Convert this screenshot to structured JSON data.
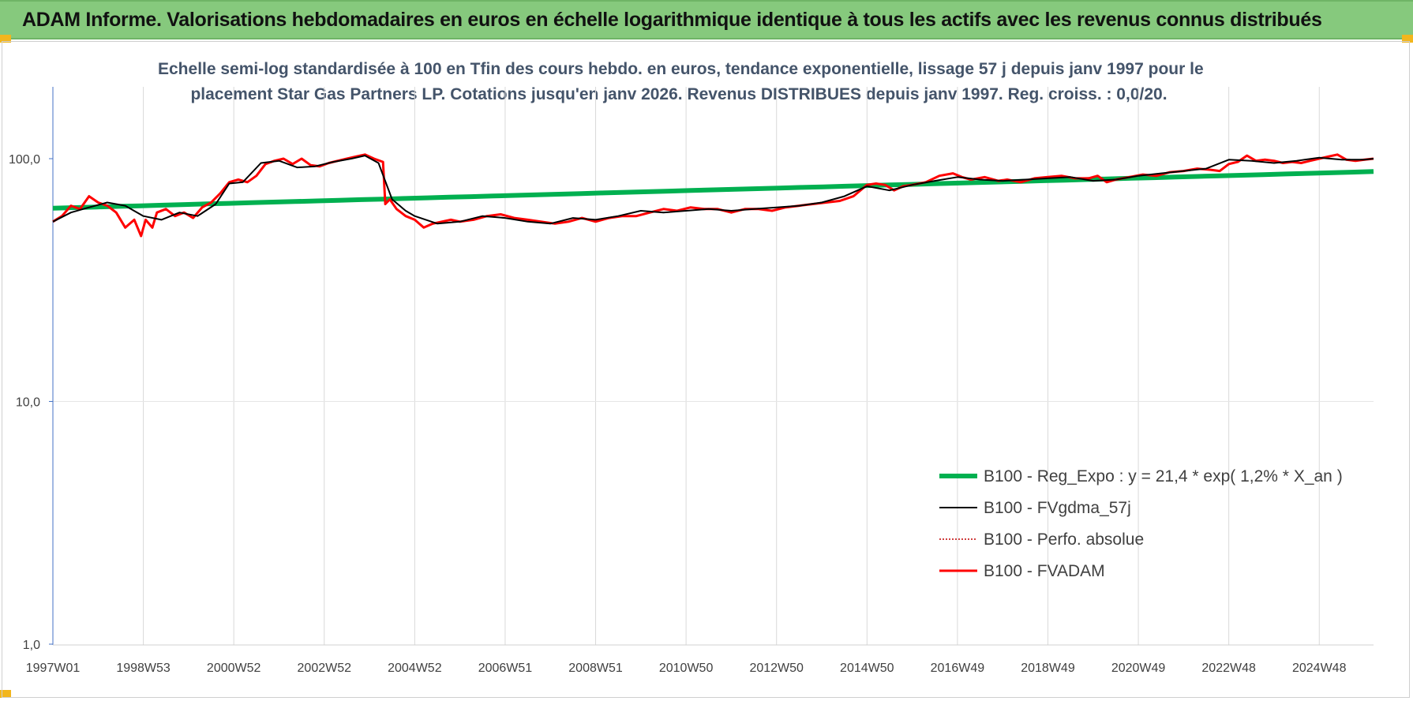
{
  "banner": {
    "title": "ADAM Informe. Valorisations hebdomadaires en euros en échelle logarithmique identique à tous les actifs avec les revenus connus distribués"
  },
  "colors": {
    "banner_bg": "#86c97d",
    "corner_accent": "#f2b61d",
    "regression": "#00b050",
    "fvgdma": "#000000",
    "perf": "#c00000",
    "fvadam": "#ff0000"
  },
  "chart_data": {
    "type": "line",
    "title_lines": [
      "Echelle semi-log standardisée à 100 en Tfin des cours hebdo. en euros, tendance exponentielle, lissage 57 j depuis janv 1997 pour le",
      "placement Star Gas Partners LP. Cotations jusqu'en janv 2026. Revenus DISTRIBUES depuis janv 1997. Reg. croiss. : 0,0/20."
    ],
    "y_scale": "log",
    "ylim": [
      1,
      200
    ],
    "y_ticks": [
      {
        "value": 1,
        "label": "1,0"
      },
      {
        "value": 10,
        "label": "10,0"
      },
      {
        "value": 100,
        "label": "100,0"
      }
    ],
    "xlim": [
      1997.0,
      2026.2
    ],
    "x_ticks": [
      {
        "t": 1997.0,
        "label": "1997W01"
      },
      {
        "t": 1999.0,
        "label": "1998W53"
      },
      {
        "t": 2001.0,
        "label": "2000W52"
      },
      {
        "t": 2003.0,
        "label": "2002W52"
      },
      {
        "t": 2005.0,
        "label": "2004W52"
      },
      {
        "t": 2007.0,
        "label": "2006W51"
      },
      {
        "t": 2009.0,
        "label": "2008W51"
      },
      {
        "t": 2011.0,
        "label": "2010W50"
      },
      {
        "t": 2013.0,
        "label": "2012W50"
      },
      {
        "t": 2015.0,
        "label": "2014W50"
      },
      {
        "t": 2017.0,
        "label": "2016W49"
      },
      {
        "t": 2019.0,
        "label": "2018W49"
      },
      {
        "t": 2021.0,
        "label": "2020W49"
      },
      {
        "t": 2023.0,
        "label": "2022W48"
      },
      {
        "t": 2025.0,
        "label": "2024W48"
      }
    ],
    "grid": "vertical",
    "legend_position": "bottom-right",
    "series": [
      {
        "name": "B100 - Reg_Expo : y = 21,4 * exp( 1,2% *  X_an )",
        "key": "reg",
        "x": [
          1997.0,
          2026.2
        ],
        "y": [
          62.5,
          88.5
        ]
      },
      {
        "name": "B100 - FVgdma_57j",
        "key": "fvgdma",
        "x": [
          1997.0,
          1997.4,
          1997.8,
          1998.2,
          1998.6,
          1999.0,
          1999.4,
          1999.8,
          2000.2,
          2000.6,
          2000.9,
          2001.2,
          2001.6,
          2002.0,
          2002.4,
          2002.8,
          2003.2,
          2003.6,
          2003.9,
          2004.2,
          2004.5,
          2004.8,
          2005.0,
          2005.5,
          2006.0,
          2006.5,
          2007.0,
          2007.5,
          2008.0,
          2008.5,
          2009.0,
          2009.5,
          2010.0,
          2010.5,
          2011.0,
          2011.5,
          2012.0,
          2012.5,
          2013.0,
          2013.5,
          2014.0,
          2014.5,
          2015.0,
          2015.5,
          2016.0,
          2016.5,
          2017.0,
          2017.5,
          2018.0,
          2018.5,
          2019.0,
          2019.5,
          2020.0,
          2020.5,
          2021.0,
          2021.5,
          2022.0,
          2022.5,
          2023.0,
          2023.5,
          2024.0,
          2024.5,
          2025.0,
          2025.5,
          2026.0,
          2026.2
        ],
        "y": [
          55,
          60,
          63,
          66,
          64,
          58,
          56,
          60,
          58,
          65,
          79,
          80,
          96,
          98,
          92,
          93,
          97,
          100,
          103,
          96,
          68,
          61,
          58,
          54,
          55,
          58,
          57,
          55,
          54,
          57,
          56,
          58,
          61,
          60,
          61,
          62,
          61,
          62,
          63,
          64,
          66,
          70,
          77,
          74,
          78,
          81,
          84,
          82,
          81,
          82,
          83,
          84,
          81,
          82,
          85,
          87,
          89,
          91,
          99,
          98,
          96,
          98,
          101,
          99,
          99,
          100
        ]
      },
      {
        "name": "B100 - Perfo. absolue",
        "key": "perf",
        "x": [],
        "y": []
      },
      {
        "name": "B100 - FVADAM",
        "key": "fvadam",
        "x": [
          1997.0,
          1997.2,
          1997.4,
          1997.6,
          1997.8,
          1998.0,
          1998.2,
          1998.4,
          1998.6,
          1998.8,
          1998.95,
          1999.05,
          1999.2,
          1999.3,
          1999.5,
          1999.7,
          1999.9,
          2000.1,
          2000.3,
          2000.5,
          2000.7,
          2000.9,
          2001.1,
          2001.3,
          2001.5,
          2001.7,
          2001.9,
          2002.1,
          2002.3,
          2002.5,
          2002.7,
          2002.9,
          2003.1,
          2003.3,
          2003.5,
          2003.7,
          2003.9,
          2004.1,
          2004.3,
          2004.35,
          2004.45,
          2004.6,
          2004.8,
          2005.0,
          2005.2,
          2005.4,
          2005.6,
          2005.8,
          2006.0,
          2006.3,
          2006.6,
          2006.9,
          2007.2,
          2007.5,
          2007.8,
          2008.1,
          2008.4,
          2008.7,
          2009.0,
          2009.3,
          2009.6,
          2009.9,
          2010.2,
          2010.5,
          2010.8,
          2011.1,
          2011.4,
          2011.7,
          2012.0,
          2012.3,
          2012.6,
          2012.9,
          2013.2,
          2013.5,
          2013.8,
          2014.1,
          2014.4,
          2014.7,
          2015.0,
          2015.2,
          2015.4,
          2015.6,
          2015.8,
          2016.0,
          2016.3,
          2016.6,
          2016.9,
          2017.1,
          2017.3,
          2017.6,
          2017.9,
          2018.1,
          2018.4,
          2018.7,
          2019.0,
          2019.3,
          2019.6,
          2019.9,
          2020.1,
          2020.3,
          2020.5,
          2020.8,
          2021.1,
          2021.4,
          2021.7,
          2022.0,
          2022.3,
          2022.6,
          2022.8,
          2023.0,
          2023.2,
          2023.4,
          2023.6,
          2023.8,
          2024.0,
          2024.2,
          2024.4,
          2024.6,
          2024.8,
          2025.0,
          2025.2,
          2025.4,
          2025.6,
          2025.8,
          2026.0,
          2026.2
        ],
        "y": [
          55,
          58,
          64,
          62,
          70,
          66,
          64,
          60,
          52,
          56,
          48,
          56,
          52,
          60,
          62,
          58,
          60,
          57,
          63,
          66,
          72,
          80,
          82,
          80,
          85,
          95,
          98,
          100,
          95,
          100,
          94,
          93,
          96,
          98,
          100,
          102,
          104,
          100,
          97,
          65,
          68,
          62,
          58,
          56,
          52,
          54,
          55,
          56,
          55,
          56,
          58,
          59,
          57,
          56,
          55,
          54,
          55,
          57,
          55,
          57,
          58,
          58,
          60,
          62,
          61,
          63,
          62,
          62,
          60,
          62,
          62,
          61,
          63,
          64,
          65,
          66,
          67,
          70,
          78,
          79,
          78,
          74,
          77,
          78,
          80,
          85,
          87,
          84,
          82,
          84,
          81,
          82,
          80,
          83,
          84,
          85,
          83,
          83,
          85,
          80,
          82,
          84,
          86,
          85,
          88,
          89,
          91,
          90,
          89,
          95,
          97,
          103,
          98,
          99,
          98,
          96,
          97,
          96,
          98,
          100,
          102,
          104,
          99,
          98,
          99,
          100
        ]
      }
    ]
  }
}
